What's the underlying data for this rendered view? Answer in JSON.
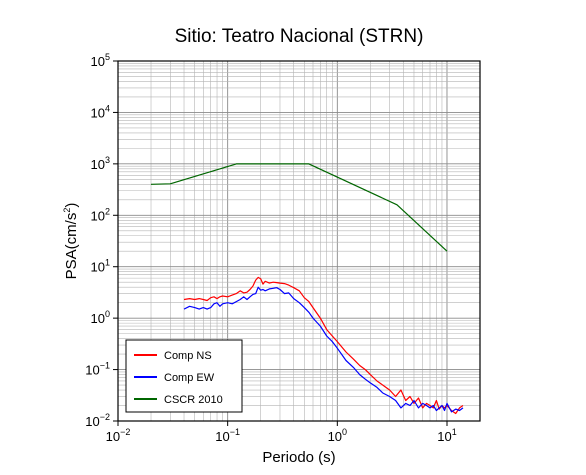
{
  "chart_data": {
    "type": "line",
    "title": "Sitio: Teatro Nacional (STRN)",
    "xlabel": "Periodo (s)",
    "ylabel_base": "PSA(cm/s",
    "ylabel_sup": "2",
    "ylabel_end": ")",
    "xscale": "log",
    "yscale": "log",
    "xlim": [
      0.01,
      20
    ],
    "ylim": [
      0.01,
      100000
    ],
    "grid": true,
    "legend_position": "bottom-left",
    "x_ticks": [
      {
        "value": 0.01,
        "base": "10",
        "exp": "−2"
      },
      {
        "value": 0.1,
        "base": "10",
        "exp": "−1"
      },
      {
        "value": 1,
        "base": "10",
        "exp": "0"
      },
      {
        "value": 10,
        "base": "10",
        "exp": "1"
      }
    ],
    "y_ticks": [
      {
        "value": 0.01,
        "base": "10",
        "exp": "−2"
      },
      {
        "value": 0.1,
        "base": "10",
        "exp": "−1"
      },
      {
        "value": 1,
        "base": "10",
        "exp": "0"
      },
      {
        "value": 10,
        "base": "10",
        "exp": "1"
      },
      {
        "value": 100,
        "base": "10",
        "exp": "2"
      },
      {
        "value": 1000,
        "base": "10",
        "exp": "3"
      },
      {
        "value": 10000,
        "base": "10",
        "exp": "4"
      },
      {
        "value": 100000,
        "base": "10",
        "exp": "5"
      }
    ],
    "series": [
      {
        "name": "Comp NS",
        "color": "#ff0000",
        "x": [
          0.04,
          0.045,
          0.05,
          0.055,
          0.06,
          0.065,
          0.07,
          0.075,
          0.08,
          0.085,
          0.09,
          0.1,
          0.11,
          0.12,
          0.13,
          0.14,
          0.15,
          0.16,
          0.17,
          0.18,
          0.19,
          0.2,
          0.21,
          0.22,
          0.24,
          0.26,
          0.28,
          0.3,
          0.33,
          0.36,
          0.4,
          0.45,
          0.5,
          0.55,
          0.6,
          0.7,
          0.8,
          0.9,
          1.0,
          1.2,
          1.4,
          1.6,
          1.8,
          2.0,
          2.3,
          2.6,
          3.0,
          3.4,
          3.8,
          4.2,
          4.6,
          5.0,
          5.5,
          6.0,
          6.5,
          7.0,
          7.5,
          8.0,
          8.5,
          9.0,
          9.5,
          10.0,
          11.0,
          12.0,
          13.0,
          14.0
        ],
        "y": [
          2.3,
          2.4,
          2.3,
          2.4,
          2.3,
          2.2,
          2.5,
          2.6,
          2.4,
          2.6,
          2.7,
          2.6,
          2.8,
          3.0,
          3.4,
          3.1,
          3.2,
          3.6,
          4.2,
          5.5,
          6.2,
          5.8,
          4.6,
          5.2,
          4.8,
          5.0,
          4.9,
          4.8,
          4.7,
          4.4,
          3.9,
          3.4,
          2.5,
          2.1,
          1.6,
          1.0,
          0.6,
          0.45,
          0.35,
          0.22,
          0.16,
          0.12,
          0.1,
          0.08,
          0.06,
          0.05,
          0.04,
          0.03,
          0.04,
          0.025,
          0.03,
          0.022,
          0.028,
          0.018,
          0.022,
          0.02,
          0.018,
          0.025,
          0.017,
          0.02,
          0.018,
          0.02,
          0.016,
          0.014,
          0.018,
          0.02
        ]
      },
      {
        "name": "Comp EW",
        "color": "#0000ff",
        "x": [
          0.04,
          0.045,
          0.05,
          0.055,
          0.06,
          0.065,
          0.07,
          0.075,
          0.08,
          0.085,
          0.09,
          0.1,
          0.11,
          0.12,
          0.13,
          0.14,
          0.15,
          0.16,
          0.17,
          0.18,
          0.19,
          0.2,
          0.21,
          0.22,
          0.24,
          0.26,
          0.28,
          0.3,
          0.33,
          0.36,
          0.4,
          0.45,
          0.5,
          0.55,
          0.6,
          0.7,
          0.8,
          0.9,
          1.0,
          1.2,
          1.4,
          1.6,
          1.8,
          2.0,
          2.3,
          2.6,
          3.0,
          3.4,
          3.8,
          4.2,
          4.6,
          5.0,
          5.5,
          6.0,
          6.5,
          7.0,
          7.5,
          8.0,
          8.5,
          9.0,
          9.5,
          10.0,
          11.0,
          12.0,
          13.0,
          14.0
        ],
        "y": [
          1.5,
          1.7,
          1.6,
          1.5,
          1.6,
          1.5,
          1.6,
          1.9,
          2.0,
          1.7,
          1.9,
          2.0,
          1.9,
          2.1,
          2.3,
          2.6,
          2.3,
          2.6,
          2.9,
          3.0,
          4.0,
          3.5,
          3.6,
          3.4,
          3.7,
          3.8,
          3.9,
          3.6,
          3.0,
          3.1,
          2.4,
          2.0,
          1.6,
          1.3,
          1.0,
          0.7,
          0.45,
          0.35,
          0.26,
          0.15,
          0.11,
          0.08,
          0.065,
          0.055,
          0.045,
          0.035,
          0.03,
          0.025,
          0.018,
          0.022,
          0.02,
          0.025,
          0.018,
          0.022,
          0.02,
          0.018,
          0.02,
          0.016,
          0.018,
          0.02,
          0.016,
          0.022,
          0.015,
          0.017,
          0.016,
          0.018
        ]
      },
      {
        "name": "CSCR 2010",
        "color": "#006600",
        "x": [
          0.02,
          0.03,
          0.12,
          0.55,
          3.5,
          10.0
        ],
        "y": [
          400,
          410,
          1000,
          1000,
          160,
          20
        ]
      }
    ]
  }
}
